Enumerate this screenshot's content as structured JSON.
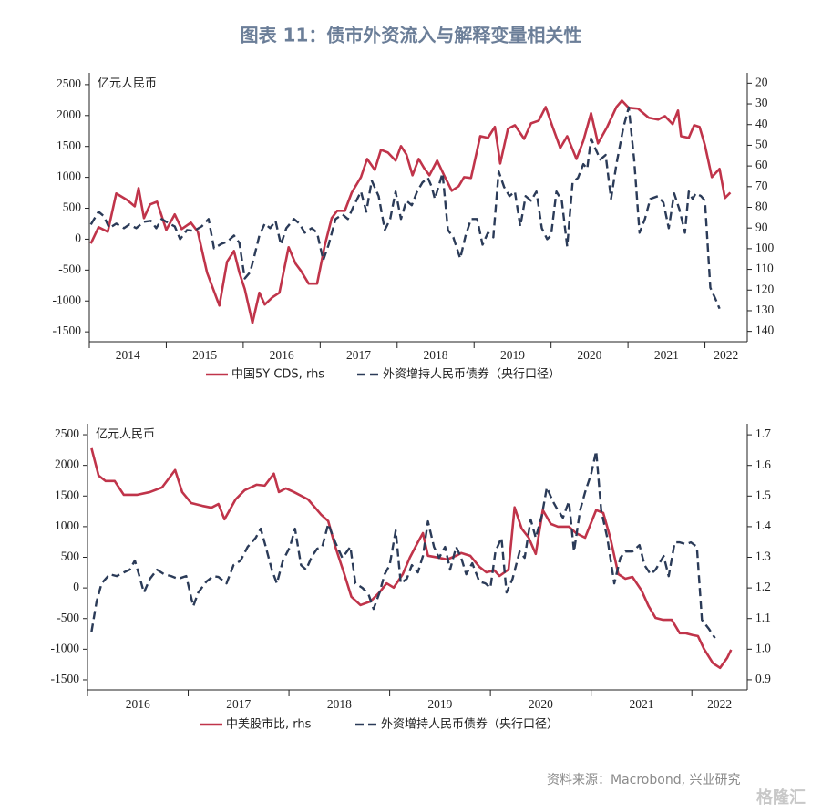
{
  "title": "图表 11：债市外资流入与解释变量相关性",
  "source": "资料来源：Macrobond, 兴业研究",
  "watermark": "格隆汇",
  "chart_data": [
    {
      "type": "line",
      "y_label": "亿元人民币",
      "xlim": [
        2014,
        2022.55
      ],
      "xticks": [
        2014,
        2015,
        2016,
        2017,
        2018,
        2019,
        2020,
        2021,
        2022
      ],
      "ylim": [
        -1660,
        2690
      ],
      "yticks": [
        -1500,
        -1000,
        -500,
        0,
        500,
        1000,
        1500,
        2000,
        2500
      ],
      "y2lim": [
        145,
        15
      ],
      "y2ticks": [
        20,
        30,
        40,
        50,
        60,
        70,
        80,
        90,
        100,
        110,
        120,
        130,
        140
      ],
      "series": [
        {
          "name": "中国5Y CDS, rhs",
          "color": "#c0344a",
          "dash": false,
          "axis": "y2",
          "x": [
            2014.02,
            2014.12,
            2014.24,
            2014.35,
            2014.49,
            2014.59,
            2014.64,
            2014.71,
            2014.79,
            2014.88,
            2015.0,
            2015.11,
            2015.2,
            2015.32,
            2015.41,
            2015.53,
            2015.69,
            2015.79,
            2015.88,
            2015.95,
            2016.02,
            2016.12,
            2016.21,
            2016.28,
            2016.38,
            2016.47,
            2016.59,
            2016.68,
            2016.75,
            2016.85,
            2016.96,
            2017.06,
            2017.15,
            2017.22,
            2017.32,
            2017.41,
            2017.53,
            2017.61,
            2017.71,
            2017.79,
            2017.88,
            2017.98,
            2018.05,
            2018.12,
            2018.2,
            2018.28,
            2018.35,
            2018.42,
            2018.52,
            2018.61,
            2018.71,
            2018.8,
            2018.87,
            2018.96,
            2019.08,
            2019.18,
            2019.27,
            2019.34,
            2019.44,
            2019.53,
            2019.65,
            2019.74,
            2019.84,
            2019.93,
            2020.02,
            2020.12,
            2020.21,
            2020.33,
            2020.42,
            2020.52,
            2020.61,
            2020.73,
            2020.85,
            2020.92,
            2021.01,
            2021.13,
            2021.27,
            2021.39,
            2021.48,
            2021.58,
            2021.65,
            2021.69,
            2021.79,
            2021.86,
            2021.93,
            2022.0,
            2022.09,
            2022.19,
            2022.26,
            2022.33
          ],
          "values": [
            97.5,
            89.6,
            91.8,
            73.3,
            76.4,
            79.5,
            70.7,
            85.2,
            78.6,
            77.3,
            90.9,
            83.4,
            90.5,
            87.4,
            91.8,
            111.6,
            127.5,
            106.3,
            101.1,
            111.6,
            119.5,
            135.9,
            121.3,
            127.0,
            123.5,
            121.3,
            99.3,
            107.2,
            110.7,
            116.9,
            116.9,
            98.4,
            85.2,
            81.7,
            81.7,
            72.9,
            65.4,
            56.6,
            61.9,
            52.2,
            53.5,
            57.4,
            50.4,
            54.4,
            64.5,
            56.6,
            61.0,
            64.5,
            57.4,
            64.5,
            72.0,
            69.8,
            65.4,
            65.8,
            45.6,
            46.4,
            41.1,
            58.8,
            42.0,
            40.3,
            46.9,
            39.4,
            38.1,
            31.5,
            41.1,
            51.3,
            45.6,
            56.6,
            47.8,
            34.5,
            49.1,
            41.1,
            31.5,
            28.4,
            31.9,
            32.3,
            36.7,
            37.6,
            35.9,
            39.8,
            33.2,
            45.6,
            46.4,
            40.3,
            41.1,
            50.0,
            65.4,
            61.4,
            75.5,
            72.9
          ]
        },
        {
          "name": "外资增持人民币债券（央行口径）",
          "color": "#2b3b58",
          "dash": true,
          "axis": "y",
          "x": [
            2014.02,
            2014.12,
            2014.19,
            2014.26,
            2014.35,
            2014.45,
            2014.52,
            2014.61,
            2014.71,
            2014.8,
            2014.87,
            2014.94,
            2015.04,
            2015.11,
            2015.18,
            2015.27,
            2015.36,
            2015.46,
            2015.55,
            2015.62,
            2015.72,
            2015.79,
            2015.88,
            2015.95,
            2016.02,
            2016.09,
            2016.14,
            2016.21,
            2016.28,
            2016.35,
            2016.42,
            2016.49,
            2016.56,
            2016.66,
            2016.73,
            2016.8,
            2016.89,
            2016.96,
            2017.04,
            2017.11,
            2017.2,
            2017.29,
            2017.36,
            2017.44,
            2017.53,
            2017.6,
            2017.67,
            2017.76,
            2017.84,
            2017.91,
            2017.98,
            2018.05,
            2018.12,
            2018.19,
            2018.26,
            2018.33,
            2018.4,
            2018.45,
            2018.49,
            2018.59,
            2018.66,
            2018.73,
            2018.82,
            2018.89,
            2018.96,
            2019.04,
            2019.11,
            2019.18,
            2019.25,
            2019.32,
            2019.39,
            2019.46,
            2019.53,
            2019.6,
            2019.67,
            2019.74,
            2019.81,
            2019.88,
            2019.95,
            2020.0,
            2020.07,
            2020.14,
            2020.21,
            2020.28,
            2020.35,
            2020.42,
            2020.47,
            2020.52,
            2020.56,
            2020.64,
            2020.71,
            2020.78,
            2020.85,
            2020.94,
            2021.01,
            2021.08,
            2021.15,
            2021.22,
            2021.29,
            2021.39,
            2021.46,
            2021.53,
            2021.6,
            2021.67,
            2021.74,
            2021.79,
            2021.84,
            2021.88,
            2021.95,
            2022.0,
            2022.07,
            2022.14,
            2022.19
          ],
          "values": [
            237,
            444,
            370,
            178,
            252,
            178,
            237,
            178,
            281,
            296,
            178,
            326,
            252,
            207,
            0,
            148,
            133,
            207,
            326,
            -148,
            -74,
            -44,
            59,
            -59,
            -636,
            -533,
            -296,
            59,
            252,
            178,
            296,
            -89,
            178,
            326,
            252,
            104,
            178,
            104,
            -340,
            -89,
            326,
            400,
            326,
            548,
            770,
            444,
            947,
            696,
            148,
            326,
            770,
            326,
            622,
            548,
            770,
            918,
            992,
            844,
            651,
            1066,
            148,
            30,
            -311,
            59,
            326,
            326,
            -89,
            104,
            30,
            1095,
            844,
            696,
            770,
            207,
            696,
            622,
            770,
            178,
            0,
            59,
            770,
            622,
            -118,
            918,
            992,
            1214,
            1140,
            1628,
            1510,
            1288,
            1362,
            651,
            1214,
            1806,
            2131,
            1288,
            104,
            326,
            651,
            696,
            592,
            178,
            740,
            474,
            104,
            770,
            651,
            740,
            696,
            622,
            -784,
            -977,
            -1125
          ]
        }
      ]
    },
    {
      "type": "line",
      "y_label": "亿元人民币",
      "xlim": [
        2016,
        2022.55
      ],
      "xticks": [
        2016,
        2017,
        2018,
        2019,
        2020,
        2021,
        2022
      ],
      "ylim": [
        -1664,
        2679
      ],
      "yticks": [
        -1500,
        -1000,
        -500,
        0,
        500,
        1000,
        1500,
        2000,
        2500
      ],
      "y2lim": [
        0.867,
        1.736
      ],
      "y2ticks": [
        0.9,
        {
          "value": 1,
          "label": "1.0"
        },
        1.1,
        1.2,
        1.3,
        1.4,
        1.5,
        1.6,
        1.7
      ],
      "series": [
        {
          "name": "中美股市比, rhs",
          "color": "#c0344a",
          "dash": false,
          "axis": "y2",
          "x": [
            2016.04,
            2016.11,
            2016.18,
            2016.27,
            2016.36,
            2016.49,
            2016.62,
            2016.74,
            2016.87,
            2016.94,
            2017.03,
            2017.14,
            2017.23,
            2017.3,
            2017.36,
            2017.47,
            2017.56,
            2017.68,
            2017.76,
            2017.85,
            2017.9,
            2017.97,
            2018.05,
            2018.19,
            2018.32,
            2018.39,
            2018.46,
            2018.55,
            2018.62,
            2018.71,
            2018.81,
            2018.9,
            2018.97,
            2019.04,
            2019.13,
            2019.2,
            2019.28,
            2019.33,
            2019.38,
            2019.48,
            2019.57,
            2019.66,
            2019.71,
            2019.8,
            2019.89,
            2019.96,
            2020.04,
            2020.09,
            2020.18,
            2020.24,
            2020.31,
            2020.38,
            2020.45,
            2020.52,
            2020.6,
            2020.67,
            2020.78,
            2020.85,
            2020.94,
            2021.05,
            2021.12,
            2021.19,
            2021.27,
            2021.34,
            2021.41,
            2021.5,
            2021.57,
            2021.64,
            2021.71,
            2021.8,
            2021.88,
            2021.94,
            2022.01,
            2022.06,
            2022.12,
            2022.21,
            2022.28,
            2022.35,
            2022.39
          ],
          "values": [
            1.656,
            1.567,
            1.549,
            1.549,
            1.504,
            1.504,
            1.513,
            1.528,
            1.585,
            1.513,
            1.477,
            1.468,
            1.462,
            1.474,
            1.424,
            1.489,
            1.519,
            1.537,
            1.534,
            1.573,
            1.513,
            1.525,
            1.513,
            1.489,
            1.439,
            1.418,
            1.335,
            1.245,
            1.171,
            1.144,
            1.156,
            1.186,
            1.215,
            1.201,
            1.245,
            1.299,
            1.349,
            1.379,
            1.305,
            1.299,
            1.293,
            1.305,
            1.314,
            1.305,
            1.269,
            1.251,
            1.257,
            1.239,
            1.26,
            1.463,
            1.394,
            1.364,
            1.311,
            1.454,
            1.409,
            1.4,
            1.4,
            1.379,
            1.364,
            1.454,
            1.445,
            1.364,
            1.245,
            1.23,
            1.236,
            1.192,
            1.141,
            1.102,
            1.096,
            1.096,
            1.052,
            1.052,
            1.046,
            1.043,
            1.001,
            0.954,
            0.939,
            0.971,
            0.998
          ]
        },
        {
          "name": "外资增持人民币债券（央行口径）",
          "color": "#2b3b58",
          "dash": true,
          "axis": "y",
          "x": [
            2016.04,
            2016.09,
            2016.14,
            2016.22,
            2016.29,
            2016.36,
            2016.42,
            2016.47,
            2016.51,
            2016.56,
            2016.62,
            2016.69,
            2016.76,
            2016.83,
            2016.9,
            2016.98,
            2017.05,
            2017.1,
            2017.18,
            2017.25,
            2017.3,
            2017.38,
            2017.45,
            2017.52,
            2017.59,
            2017.67,
            2017.72,
            2017.77,
            2017.83,
            2017.88,
            2017.94,
            2018.01,
            2018.06,
            2018.12,
            2018.17,
            2018.23,
            2018.28,
            2018.33,
            2018.39,
            2018.46,
            2018.53,
            2018.61,
            2018.66,
            2018.73,
            2018.79,
            2018.84,
            2018.9,
            2018.95,
            2019.0,
            2019.06,
            2019.11,
            2019.17,
            2019.22,
            2019.28,
            2019.33,
            2019.38,
            2019.44,
            2019.49,
            2019.55,
            2019.6,
            2019.66,
            2019.71,
            2019.76,
            2019.82,
            2019.89,
            2019.95,
            2020.0,
            2020.05,
            2020.11,
            2020.16,
            2020.22,
            2020.29,
            2020.34,
            2020.4,
            2020.45,
            2020.51,
            2020.56,
            2020.62,
            2020.67,
            2020.72,
            2020.78,
            2020.83,
            2020.89,
            2020.94,
            2021.0,
            2021.05,
            2021.1,
            2021.16,
            2021.23,
            2021.29,
            2021.34,
            2021.41,
            2021.48,
            2021.53,
            2021.59,
            2021.64,
            2021.72,
            2021.77,
            2021.83,
            2021.88,
            2021.94,
            2021.99,
            2022.05,
            2022.1,
            2022.17,
            2022.23
          ],
          "values": [
            -714,
            -223,
            74,
            223,
            193,
            253,
            298,
            446,
            223,
            -74,
            149,
            298,
            223,
            193,
            149,
            193,
            -298,
            -74,
            104,
            193,
            179,
            74,
            372,
            446,
            670,
            818,
            967,
            670,
            298,
            74,
            446,
            670,
            967,
            372,
            298,
            521,
            640,
            670,
            1042,
            744,
            491,
            670,
            74,
            0,
            -104,
            -342,
            -74,
            223,
            372,
            937,
            74,
            149,
            372,
            253,
            521,
            1086,
            670,
            491,
            670,
            298,
            670,
            491,
            223,
            402,
            104,
            74,
            0,
            595,
            818,
            -74,
            149,
            595,
            491,
            1116,
            818,
            1176,
            1637,
            1414,
            1265,
            1146,
            1414,
            595,
            1265,
            1562,
            1860,
            2232,
            1265,
            818,
            74,
            491,
            595,
            595,
            699,
            372,
            223,
            298,
            521,
            193,
            744,
            744,
            714,
            744,
            670,
            -521,
            -670,
            -818
          ]
        }
      ]
    }
  ]
}
